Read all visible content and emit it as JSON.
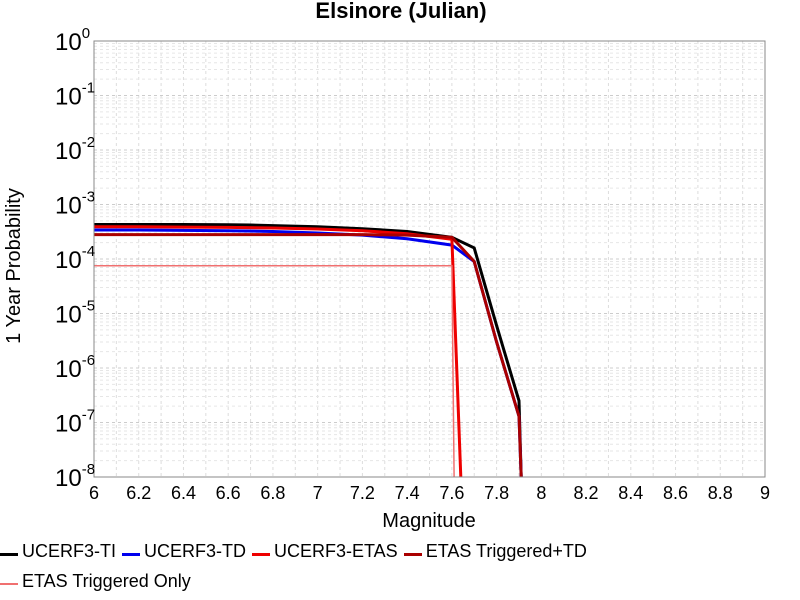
{
  "chart_data": {
    "type": "line",
    "title": "Elsinore (Julian)",
    "xlabel": "Magnitude",
    "ylabel": "1 Year Probability",
    "xlim": [
      6,
      9
    ],
    "ylim": [
      1e-08,
      1
    ],
    "yscale": "log",
    "xticks": [
      "6",
      "6.2",
      "6.4",
      "6.6",
      "6.8",
      "7",
      "7.2",
      "7.4",
      "7.6",
      "7.8",
      "8",
      "8.2",
      "8.4",
      "8.6",
      "8.8",
      "9"
    ],
    "yticks": [
      {
        "base": "10",
        "exp": "0"
      },
      {
        "base": "10",
        "exp": "-1"
      },
      {
        "base": "10",
        "exp": "-2"
      },
      {
        "base": "10",
        "exp": "-3"
      },
      {
        "base": "10",
        "exp": "-4"
      },
      {
        "base": "10",
        "exp": "-5"
      },
      {
        "base": "10",
        "exp": "-6"
      },
      {
        "base": "10",
        "exp": "-7"
      },
      {
        "base": "10",
        "exp": "-8"
      }
    ],
    "grid": true,
    "legend_position": "bottom",
    "series": [
      {
        "name": "UCERF3-TI",
        "color": "#000000",
        "width": 3,
        "x": [
          6.0,
          6.2,
          6.4,
          6.6,
          6.7,
          6.8,
          7.0,
          7.2,
          7.4,
          7.6,
          7.7,
          7.8,
          7.9,
          7.91
        ],
        "y": [
          0.00043,
          0.00043,
          0.00043,
          0.000425,
          0.00042,
          0.00041,
          0.00039,
          0.00036,
          0.00032,
          0.00025,
          0.00016,
          6e-06,
          2.5e-07,
          1e-08
        ]
      },
      {
        "name": "UCERF3-TD",
        "color": "#0000ee",
        "width": 3,
        "x": [
          6.0,
          6.2,
          6.4,
          6.6,
          6.8,
          7.0,
          7.2,
          7.4,
          7.6,
          7.7,
          7.8,
          7.9,
          7.91
        ],
        "y": [
          0.00034,
          0.00034,
          0.000335,
          0.00033,
          0.00032,
          0.0003,
          0.000275,
          0.000235,
          0.00018,
          9e-05,
          3e-06,
          1.3e-07,
          1e-08
        ]
      },
      {
        "name": "UCERF3-ETAS",
        "color": "#ee0000",
        "width": 3,
        "x": [
          6.0,
          6.2,
          6.4,
          6.6,
          6.8,
          7.0,
          7.2,
          7.4,
          7.6,
          7.64
        ],
        "y": [
          0.00039,
          0.00039,
          0.000385,
          0.00038,
          0.00037,
          0.000355,
          0.00033,
          0.00029,
          0.00023,
          1e-08
        ]
      },
      {
        "name": "ETAS Triggered+TD",
        "color": "#aa0000",
        "width": 3,
        "x": [
          6.0,
          6.2,
          6.4,
          6.6,
          6.8,
          7.0,
          7.2,
          7.4,
          7.6,
          7.7,
          7.8,
          7.9,
          7.91
        ],
        "y": [
          0.00028,
          0.00028,
          0.00028,
          0.00028,
          0.00028,
          0.00028,
          0.00028,
          0.000275,
          0.00025,
          9e-05,
          3e-06,
          1.3e-07,
          1e-08
        ]
      },
      {
        "name": "ETAS Triggered Only",
        "color": "#f07070",
        "width": 1.5,
        "x": [
          6.0,
          7.6,
          7.61
        ],
        "y": [
          7.5e-05,
          7.5e-05,
          1e-08
        ]
      }
    ]
  }
}
